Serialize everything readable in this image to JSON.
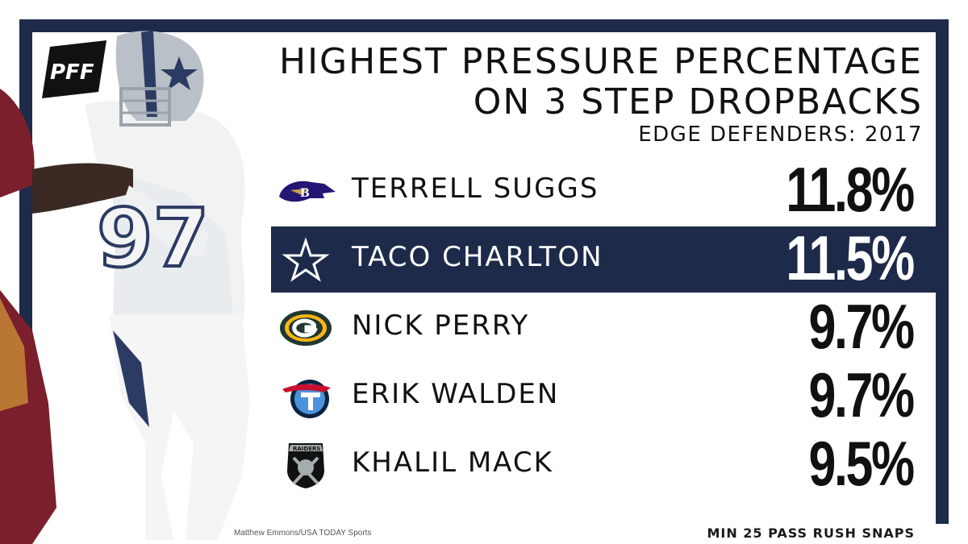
{
  "brand": {
    "logo_text": "PFF"
  },
  "title": {
    "line1": "Highest Pressure Percentage",
    "line2": "on 3 Step Dropbacks"
  },
  "subtitle": "Edge Defenders: 2017",
  "players": [
    {
      "name": "Terrell Suggs",
      "pct": "11.8%",
      "team_icon": "ravens-logo-icon",
      "highlight": false
    },
    {
      "name": "Taco Charlton",
      "pct": "11.5%",
      "team_icon": "cowboys-star-icon",
      "highlight": true
    },
    {
      "name": "Nick Perry",
      "pct": "9.7%",
      "team_icon": "packers-logo-icon",
      "highlight": false
    },
    {
      "name": "Erik Walden",
      "pct": "9.7%",
      "team_icon": "titans-logo-icon",
      "highlight": false
    },
    {
      "name": "Khalil Mack",
      "pct": "9.5%",
      "team_icon": "raiders-logo-icon",
      "highlight": false
    }
  ],
  "raiders_logo_text": "RAIDERS",
  "photo_credit": "Matthew Emmons/USA TODAY Sports",
  "footnote": "MIN 25 PASS RUSH SNAPS",
  "colors": {
    "navy": "#1e2a4a",
    "white": "#ffffff",
    "text": "#111111",
    "packers_green": "#203731",
    "packers_gold": "#ffb612",
    "titans_blue": "#4b92db",
    "ravens_purple": "#241773"
  }
}
